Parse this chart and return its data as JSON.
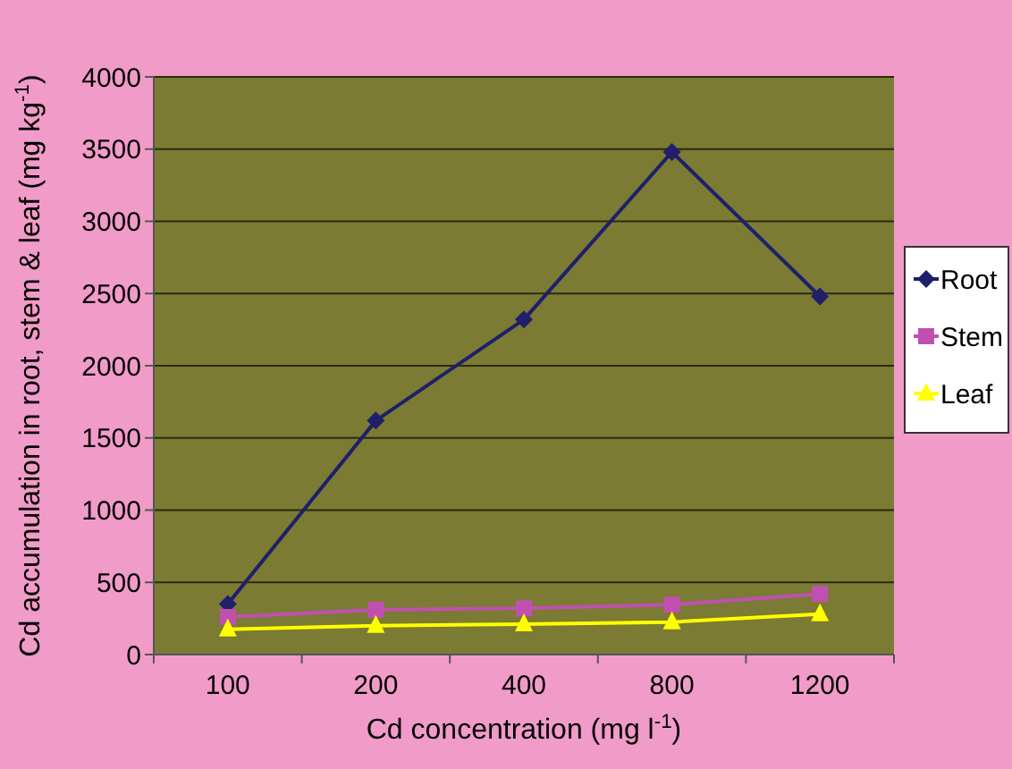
{
  "chart_data": {
    "type": "line",
    "xlabel": "Cd concentration (mg l$^{-1}$)",
    "ylabel": "Cd accumulation in root, stem & leaf (mg kg$^{-1}$)",
    "categories": [
      "100",
      "200",
      "400",
      "800",
      "1200"
    ],
    "series": [
      {
        "name": "Root",
        "color": "#1f1f6b",
        "marker": "diamond",
        "values": [
          350,
          1620,
          2320,
          3480,
          2480
        ]
      },
      {
        "name": "Stem",
        "color": "#c050b0",
        "marker": "square",
        "values": [
          260,
          310,
          320,
          345,
          420
        ]
      },
      {
        "name": "Leaf",
        "color": "#ffff00",
        "marker": "triangle",
        "values": [
          175,
          200,
          210,
          225,
          280
        ]
      }
    ],
    "ylim": [
      0,
      4000
    ],
    "yticks": [
      0,
      500,
      1000,
      1500,
      2000,
      2500,
      3000,
      3500,
      4000
    ],
    "grid": "y",
    "legend": "right"
  }
}
